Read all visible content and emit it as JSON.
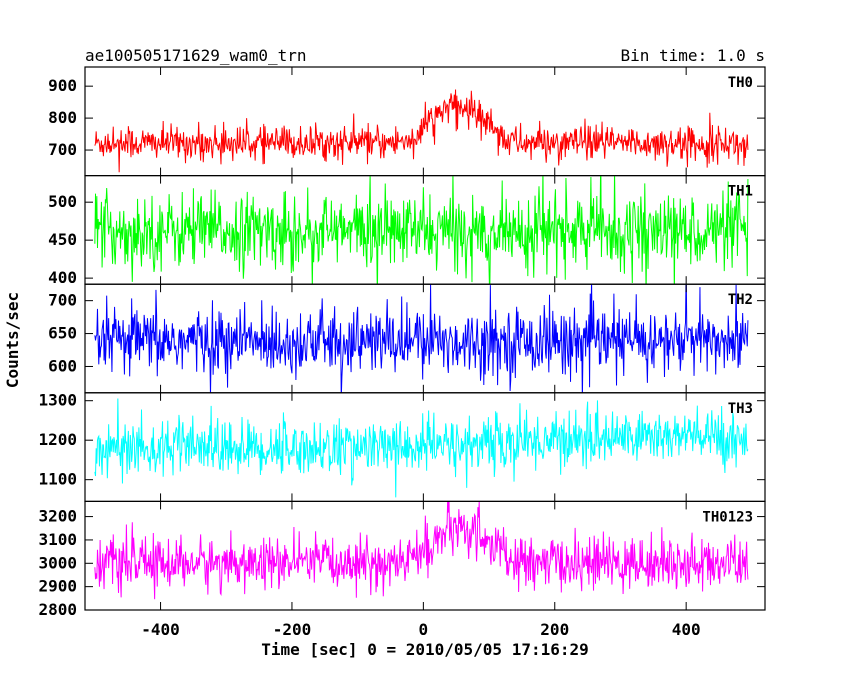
{
  "chart_data": {
    "type": "line",
    "title_left": "ae100505171629_wam0_trn",
    "title_right": "Bin time: 1.0 s",
    "xlabel": "Time [sec] 0 = 2010/05/05 17:16:29",
    "ylabel": "Counts/sec",
    "xlim": [
      -515,
      520
    ],
    "xticks": [
      -400,
      -200,
      0,
      200,
      400
    ],
    "x_range": [
      -500,
      494
    ],
    "panels": [
      {
        "name": "TH0",
        "color": "#ff0000",
        "ylim": [
          620,
          960
        ],
        "yticks": [
          700,
          800,
          900
        ],
        "baseline": 722,
        "noise": 26,
        "spikes": 12,
        "events": [
          {
            "t": 40,
            "amp": 110,
            "w": 30
          },
          {
            "t": 90,
            "amp": 60,
            "w": 20
          }
        ]
      },
      {
        "name": "TH1",
        "color": "#00ff00",
        "ylim": [
          392,
          535
        ],
        "yticks": [
          400,
          450,
          500
        ],
        "baseline": 462,
        "noise": 24,
        "spikes": 12,
        "events": []
      },
      {
        "name": "TH2",
        "color": "#0000ff",
        "ylim": [
          560,
          725
        ],
        "yticks": [
          600,
          650,
          700
        ],
        "baseline": 638,
        "noise": 25,
        "spikes": 12,
        "events": []
      },
      {
        "name": "TH3",
        "color": "#00ffff",
        "ylim": [
          1045,
          1320
        ],
        "yticks": [
          1100,
          1200,
          1300
        ],
        "baseline": 1180,
        "noise": 35,
        "spikes": 12,
        "events": [
          {
            "t": 350,
            "amp": 30,
            "w": 180
          }
        ]
      },
      {
        "name": "TH0123",
        "color": "#ff00ff",
        "ylim": [
          2800,
          3265
        ],
        "yticks": [
          2800,
          2900,
          3000,
          3100,
          3200
        ],
        "baseline": 3000,
        "noise": 55,
        "spikes": 12,
        "events": [
          {
            "t": 40,
            "amp": 130,
            "w": 30
          },
          {
            "t": 90,
            "amp": 90,
            "w": 20
          }
        ]
      }
    ]
  }
}
